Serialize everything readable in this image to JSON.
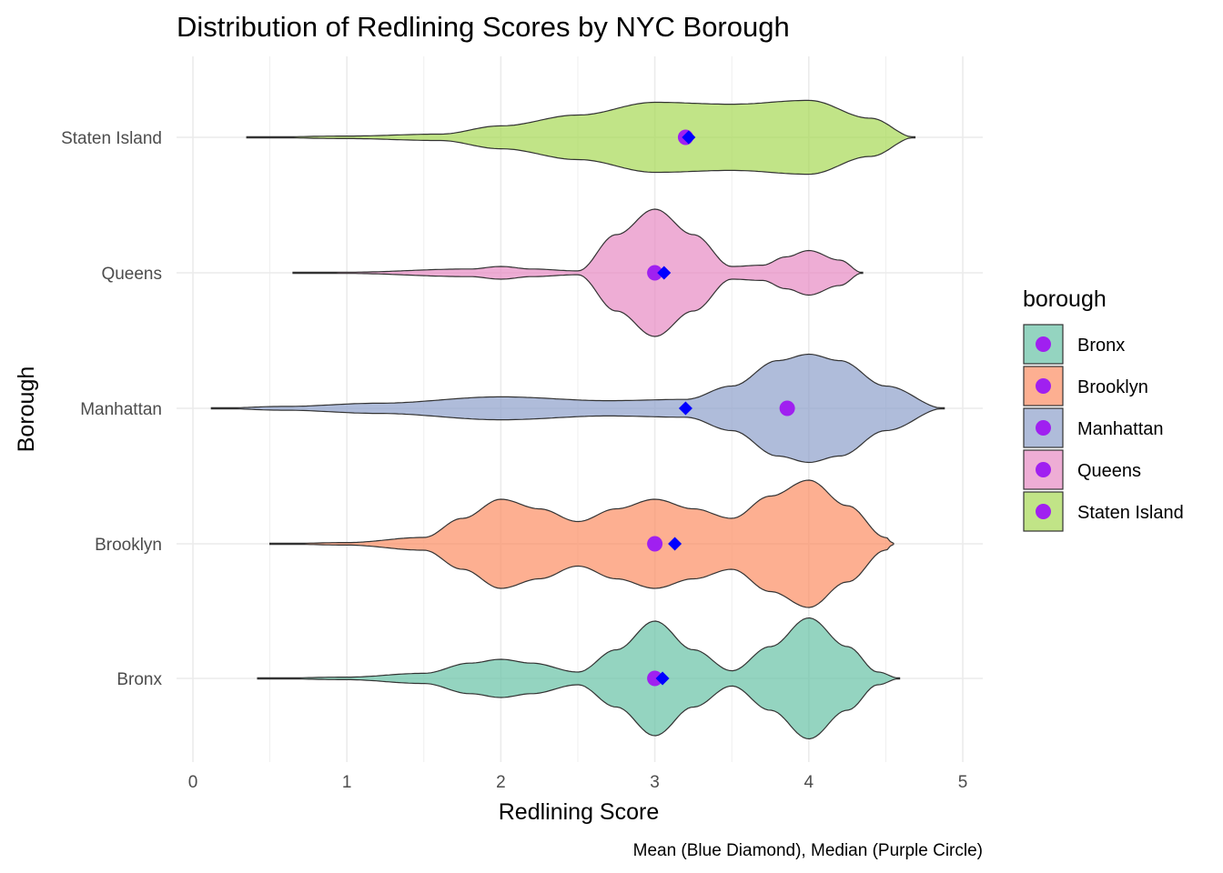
{
  "chart_data": {
    "type": "violin",
    "title": "Distribution of Redlining Scores by NYC Borough",
    "xlabel": "Redlining Score",
    "ylabel": "Borough",
    "caption": "Mean (Blue Diamond), Median (Purple Circle)",
    "xlim": [
      0,
      5
    ],
    "x_ticks": [
      "0",
      "1",
      "2",
      "3",
      "4",
      "5"
    ],
    "orientation": "horizontal",
    "grid": true,
    "legend": {
      "title": "borough",
      "position": "right",
      "entries": [
        "Bronx",
        "Brooklyn",
        "Manhattan",
        "Queens",
        "Staten Island"
      ]
    },
    "colors": {
      "Bronx": "#66c2a5",
      "Brooklyn": "#fc8d62",
      "Manhattan": "#8da0cb",
      "Queens": "#e78ac3",
      "Staten Island": "#a6d854",
      "median_marker": "#a020f0",
      "mean_marker": "#0000ff"
    },
    "series": [
      {
        "name": "Bronx",
        "range": [
          0.42,
          4.59
        ],
        "median": 3.0,
        "mean": 3.05,
        "density": [
          [
            0.42,
            0
          ],
          [
            1.0,
            0.02
          ],
          [
            1.5,
            0.08
          ],
          [
            1.8,
            0.24
          ],
          [
            2.0,
            0.3
          ],
          [
            2.2,
            0.24
          ],
          [
            2.5,
            0.1
          ],
          [
            2.75,
            0.45
          ],
          [
            3.0,
            0.9
          ],
          [
            3.25,
            0.45
          ],
          [
            3.5,
            0.12
          ],
          [
            3.75,
            0.5
          ],
          [
            4.0,
            0.95
          ],
          [
            4.25,
            0.5
          ],
          [
            4.45,
            0.1
          ],
          [
            4.59,
            0
          ]
        ]
      },
      {
        "name": "Brooklyn",
        "range": [
          0.5,
          4.55
        ],
        "median": 3.0,
        "mean": 3.13,
        "density": [
          [
            0.5,
            0
          ],
          [
            1.0,
            0.02
          ],
          [
            1.5,
            0.1
          ],
          [
            1.75,
            0.4
          ],
          [
            2.0,
            0.7
          ],
          [
            2.25,
            0.55
          ],
          [
            2.5,
            0.35
          ],
          [
            2.75,
            0.55
          ],
          [
            3.0,
            0.7
          ],
          [
            3.25,
            0.55
          ],
          [
            3.5,
            0.4
          ],
          [
            3.75,
            0.75
          ],
          [
            4.0,
            1.0
          ],
          [
            4.25,
            0.6
          ],
          [
            4.5,
            0.1
          ],
          [
            4.55,
            0
          ]
        ]
      },
      {
        "name": "Manhattan",
        "range": [
          0.12,
          4.88
        ],
        "median": 3.86,
        "mean": 3.2,
        "density": [
          [
            0.12,
            0
          ],
          [
            0.6,
            0.03
          ],
          [
            1.2,
            0.08
          ],
          [
            2.0,
            0.18
          ],
          [
            2.7,
            0.12
          ],
          [
            3.2,
            0.14
          ],
          [
            3.5,
            0.35
          ],
          [
            3.8,
            0.75
          ],
          [
            4.0,
            0.85
          ],
          [
            4.2,
            0.75
          ],
          [
            4.5,
            0.35
          ],
          [
            4.88,
            0
          ]
        ]
      },
      {
        "name": "Queens",
        "range": [
          0.65,
          4.35
        ],
        "median": 3.0,
        "mean": 3.06,
        "density": [
          [
            0.65,
            0
          ],
          [
            1.0,
            0.01
          ],
          [
            1.8,
            0.06
          ],
          [
            2.0,
            0.1
          ],
          [
            2.2,
            0.06
          ],
          [
            2.5,
            0.03
          ],
          [
            2.75,
            0.6
          ],
          [
            3.0,
            1.0
          ],
          [
            3.25,
            0.6
          ],
          [
            3.5,
            0.1
          ],
          [
            3.7,
            0.12
          ],
          [
            3.85,
            0.25
          ],
          [
            4.0,
            0.35
          ],
          [
            4.2,
            0.2
          ],
          [
            4.35,
            0
          ]
        ]
      },
      {
        "name": "Staten Island",
        "range": [
          0.35,
          4.69
        ],
        "median": 3.2,
        "mean": 3.22,
        "density": [
          [
            0.35,
            0
          ],
          [
            1.0,
            0.02
          ],
          [
            1.6,
            0.05
          ],
          [
            2.0,
            0.18
          ],
          [
            2.5,
            0.35
          ],
          [
            3.0,
            0.55
          ],
          [
            3.5,
            0.52
          ],
          [
            4.0,
            0.58
          ],
          [
            4.4,
            0.3
          ],
          [
            4.69,
            0
          ]
        ]
      }
    ]
  }
}
